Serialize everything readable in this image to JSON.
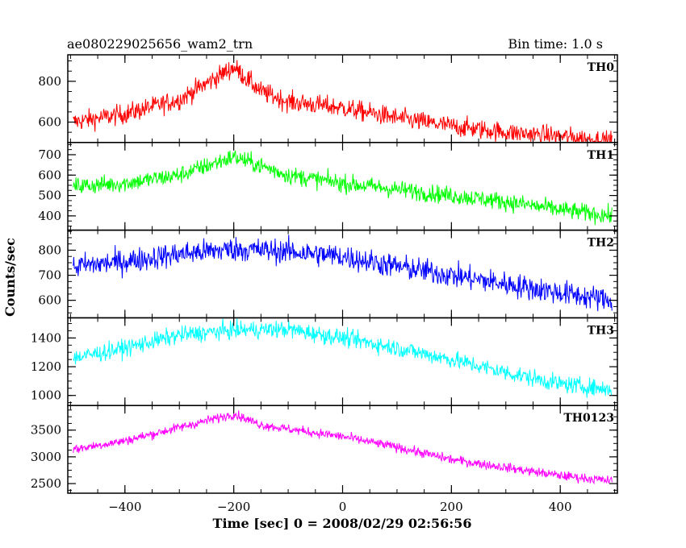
{
  "chart_data": {
    "type": "line",
    "title": "ae080229025656_wam2_trn",
    "subtitle": "Bin time: 1.0 s",
    "xlabel": "Time [sec] 0 = 2008/02/29 02:56:56",
    "ylabel": "Counts/sec",
    "xlim": [
      -505,
      505
    ],
    "xticks": [
      -400,
      -200,
      0,
      200,
      400
    ],
    "grid": false,
    "panels": [
      {
        "name": "TH0",
        "color": "#ff0000",
        "ylim": [
          500,
          930
        ],
        "yticks": [
          600,
          800
        ],
        "noise": 45,
        "x": [
          -495,
          -400,
          -300,
          -200,
          -150,
          -100,
          0,
          100,
          200,
          300,
          400,
          495
        ],
        "y": [
          600,
          640,
          710,
          870,
          750,
          700,
          670,
          620,
          580,
          550,
          530,
          505
        ]
      },
      {
        "name": "TH1",
        "color": "#00ff00",
        "ylim": [
          330,
          760
        ],
        "yticks": [
          400,
          500,
          600,
          700
        ],
        "noise": 40,
        "x": [
          -495,
          -400,
          -300,
          -200,
          -100,
          0,
          100,
          200,
          300,
          400,
          495
        ],
        "y": [
          545,
          560,
          600,
          690,
          600,
          560,
          530,
          500,
          470,
          430,
          400
        ]
      },
      {
        "name": "TH2",
        "color": "#0000ff",
        "ylim": [
          530,
          880
        ],
        "yticks": [
          600,
          700,
          800
        ],
        "noise": 45,
        "x": [
          -495,
          -400,
          -300,
          -200,
          -100,
          0,
          100,
          200,
          300,
          400,
          495
        ],
        "y": [
          735,
          755,
          785,
          805,
          795,
          775,
          735,
          700,
          665,
          630,
          600
        ]
      },
      {
        "name": "TH3",
        "color": "#00ffff",
        "ylim": [
          930,
          1540
        ],
        "yticks": [
          1000,
          1200,
          1400
        ],
        "noise": 55,
        "x": [
          -495,
          -400,
          -300,
          -200,
          -100,
          0,
          100,
          200,
          300,
          400,
          495
        ],
        "y": [
          1260,
          1330,
          1420,
          1455,
          1460,
          1400,
          1330,
          1250,
          1160,
          1080,
          1040
        ]
      },
      {
        "name": "TH0123",
        "color": "#ff00ff",
        "ylim": [
          2320,
          3960
        ],
        "yticks": [
          2500,
          3000,
          3500
        ],
        "noise": 80,
        "x": [
          -495,
          -400,
          -300,
          -200,
          -150,
          -100,
          0,
          100,
          200,
          300,
          400,
          495
        ],
        "y": [
          3140,
          3300,
          3550,
          3800,
          3600,
          3520,
          3380,
          3180,
          2950,
          2800,
          2650,
          2550
        ]
      }
    ]
  }
}
